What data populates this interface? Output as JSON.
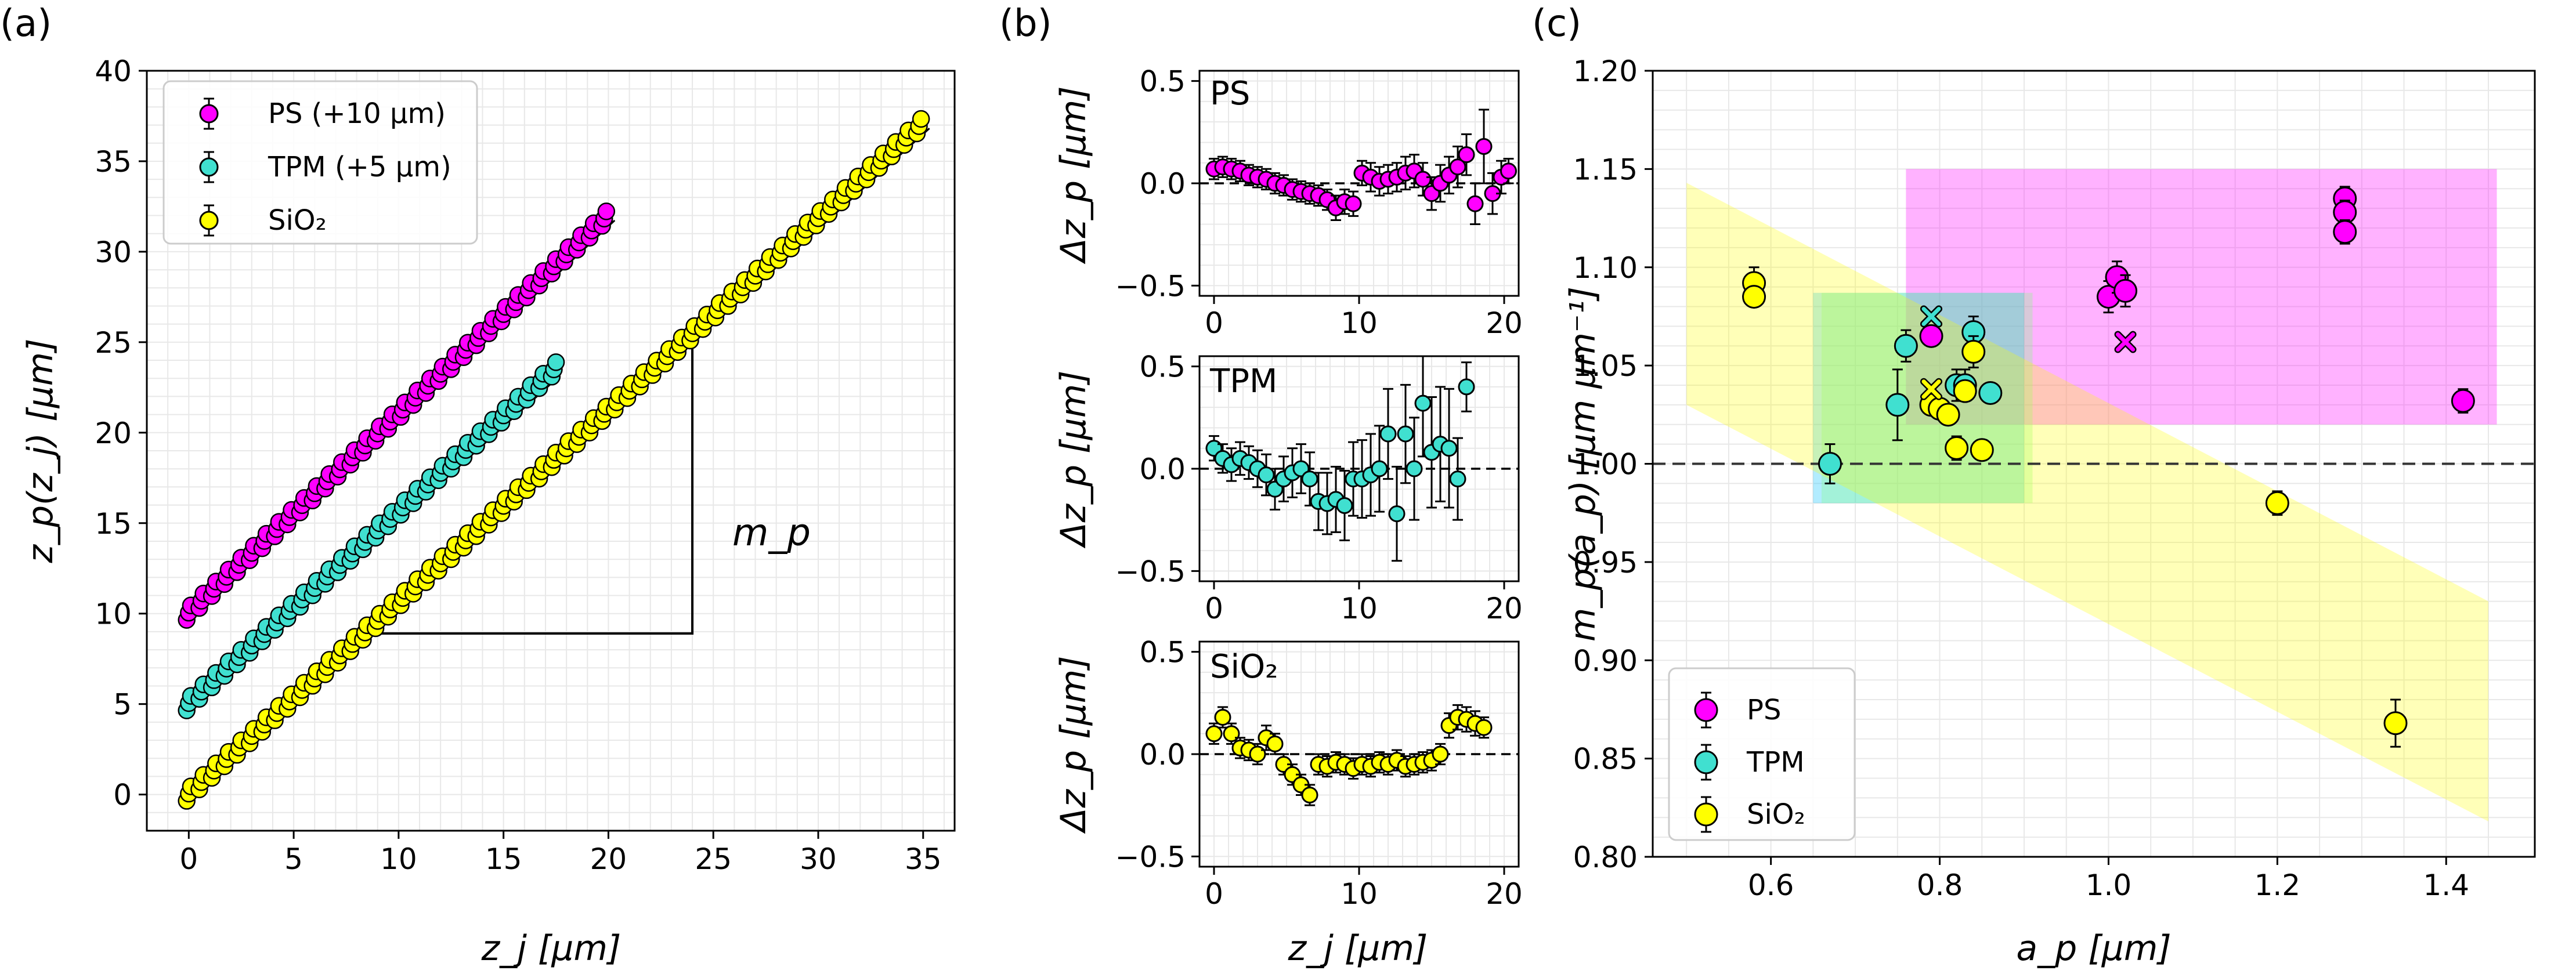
{
  "chart_data": [
    {
      "panel": "(a)",
      "type": "scatter",
      "xlabel": "z_j [µm]",
      "ylabel": "z_p(z_j) [µm]",
      "xlim": [
        -2,
        36.5
      ],
      "ylim": [
        -2,
        40
      ],
      "xticks": [
        "0",
        "5",
        "10",
        "15",
        "20",
        "25",
        "30",
        "35"
      ],
      "yticks": [
        "0",
        "5",
        "10",
        "15",
        "20",
        "25",
        "30",
        "35",
        "40"
      ],
      "legend": {
        "position": "top-left",
        "entries": [
          "PS (+10 µm)",
          "TPM (+5 µm)",
          "SiO₂"
        ]
      },
      "annotation": "m_p",
      "series": [
        {
          "name": "PS (+10 µm)",
          "color": "#ff00ff",
          "x_start": 0,
          "x_end": 20.3,
          "step": 0.6,
          "offset": 10,
          "slope": 1.1,
          "y_range": [
            10,
            32.3
          ]
        },
        {
          "name": "TPM (+5 µm)",
          "color": "#40e0d0",
          "x_start": 0,
          "x_end": 17.4,
          "step": 0.6,
          "offset": 5,
          "slope": 1.06,
          "y_range": [
            5,
            23.9
          ]
        },
        {
          "name": "SiO₂",
          "color": "#ffff00",
          "x_start": 0,
          "x_end": 35.3,
          "step": 0.6,
          "offset": 0,
          "slope": 1.06,
          "y_range": [
            0,
            37.5
          ]
        }
      ]
    },
    {
      "panel": "(b)",
      "type": "scatter",
      "subplots": [
        {
          "label": "PS",
          "color": "#ff00ff",
          "ylabel": "Δz_p [µm]",
          "xlim": [
            -1,
            21
          ],
          "ylim": [
            -0.55,
            0.55
          ],
          "yticks": [
            "0.5",
            "0.0",
            "−0.5"
          ],
          "xticks": [
            "0",
            "10",
            "20"
          ],
          "x": [
            0,
            0.6,
            1.2,
            1.8,
            2.4,
            3,
            3.6,
            4.2,
            4.8,
            5.4,
            6,
            6.6,
            7.2,
            7.8,
            8.4,
            9,
            9.6,
            10.2,
            10.8,
            11.4,
            12,
            12.6,
            13.2,
            13.8,
            14.4,
            15,
            15.6,
            16.2,
            16.8,
            17.4,
            18,
            18.6,
            19.2,
            19.8,
            20.3
          ],
          "y": [
            0.07,
            0.08,
            0.07,
            0.06,
            0.04,
            0.03,
            0.02,
            0.0,
            -0.01,
            -0.03,
            -0.04,
            -0.05,
            -0.06,
            -0.08,
            -0.12,
            -0.09,
            -0.1,
            0.05,
            0.03,
            0.01,
            0.02,
            0.03,
            0.05,
            0.06,
            0.02,
            -0.05,
            0.0,
            0.04,
            0.08,
            0.14,
            -0.1,
            0.18,
            -0.05,
            0.03,
            0.06
          ],
          "err": [
            0.05,
            0.05,
            0.05,
            0.05,
            0.05,
            0.05,
            0.05,
            0.05,
            0.05,
            0.05,
            0.05,
            0.05,
            0.05,
            0.05,
            0.06,
            0.06,
            0.06,
            0.06,
            0.07,
            0.07,
            0.07,
            0.07,
            0.08,
            0.08,
            0.08,
            0.08,
            0.09,
            0.09,
            0.1,
            0.1,
            0.1,
            0.18,
            0.1,
            0.08,
            0.06
          ]
        },
        {
          "label": "TPM",
          "color": "#40e0d0",
          "ylabel": "Δz_p [µm]",
          "xlim": [
            -1,
            21
          ],
          "ylim": [
            -0.55,
            0.55
          ],
          "yticks": [
            "0.5",
            "0.0",
            "−0.5"
          ],
          "xticks": [
            "0",
            "10",
            "20"
          ],
          "x": [
            0,
            0.6,
            1.2,
            1.8,
            2.4,
            3,
            3.6,
            4.2,
            4.8,
            5.4,
            6,
            6.6,
            7.2,
            7.8,
            8.4,
            9,
            9.6,
            10.2,
            10.8,
            11.4,
            12,
            12.6,
            13.2,
            13.8,
            14.4,
            15,
            15.6,
            16.2,
            16.8,
            17.4
          ],
          "y": [
            0.1,
            0.05,
            0.02,
            0.05,
            0.03,
            0.0,
            -0.03,
            -0.1,
            -0.05,
            -0.02,
            0.0,
            -0.05,
            -0.16,
            -0.17,
            -0.15,
            -0.18,
            -0.05,
            -0.05,
            -0.03,
            0.0,
            0.17,
            -0.22,
            0.17,
            0.0,
            0.32,
            0.08,
            0.12,
            0.1,
            -0.05,
            0.4
          ],
          "err": [
            0.06,
            0.07,
            0.08,
            0.08,
            0.08,
            0.09,
            0.1,
            0.1,
            0.11,
            0.12,
            0.12,
            0.13,
            0.14,
            0.15,
            0.16,
            0.17,
            0.18,
            0.19,
            0.2,
            0.21,
            0.22,
            0.23,
            0.24,
            0.25,
            0.26,
            0.27,
            0.28,
            0.29,
            0.2,
            0.12
          ]
        },
        {
          "label": "SiO₂",
          "color": "#ffff00",
          "ylabel": "Δz_p [µm]",
          "xlabel": "z_j [µm]",
          "xlim": [
            -1,
            21
          ],
          "ylim": [
            -0.55,
            0.55
          ],
          "yticks": [
            "0.5",
            "0.0",
            "−0.5"
          ],
          "xticks": [
            "0",
            "10",
            "20"
          ],
          "x": [
            0,
            0.6,
            1.2,
            1.8,
            2.4,
            3,
            3.6,
            4.2,
            4.8,
            5.4,
            6,
            6.6,
            7.2,
            7.8,
            8.4,
            9,
            9.6,
            10.2,
            10.8,
            11.4,
            12,
            12.6,
            13.2,
            13.8,
            14.4,
            15,
            15.6,
            16.2,
            16.8,
            17.4,
            18,
            18.6
          ],
          "y": [
            0.1,
            0.18,
            0.1,
            0.03,
            0.02,
            0.0,
            0.08,
            0.05,
            -0.05,
            -0.1,
            -0.15,
            -0.2,
            -0.05,
            -0.06,
            -0.04,
            -0.05,
            -0.07,
            -0.05,
            -0.06,
            -0.04,
            -0.05,
            -0.03,
            -0.06,
            -0.05,
            -0.04,
            -0.03,
            0.0,
            0.14,
            0.18,
            0.17,
            0.15,
            0.13
          ],
          "err": [
            0.05,
            0.05,
            0.05,
            0.05,
            0.05,
            0.05,
            0.06,
            0.05,
            0.05,
            0.05,
            0.05,
            0.05,
            0.05,
            0.05,
            0.05,
            0.05,
            0.05,
            0.05,
            0.05,
            0.05,
            0.05,
            0.05,
            0.05,
            0.05,
            0.05,
            0.05,
            0.05,
            0.06,
            0.06,
            0.06,
            0.06,
            0.05
          ]
        }
      ]
    },
    {
      "panel": "(c)",
      "type": "scatter",
      "xlabel": "a_p [µm]",
      "ylabel": "m_p(a_p) [µm µm⁻¹]",
      "xlim": [
        0.46,
        1.505
      ],
      "ylim": [
        0.8,
        1.2
      ],
      "xticks": [
        "0.6",
        "0.8",
        "1.0",
        "1.2",
        "1.4"
      ],
      "yticks": [
        "1.20",
        "1.15",
        "1.10",
        "1.05",
        "1.00",
        "0.95",
        "0.90",
        "0.85",
        "0.80"
      ],
      "reference_line": 1.0,
      "legend": {
        "position": "bottom-left",
        "entries": [
          "PS",
          "TPM",
          "SiO₂"
        ]
      },
      "series": [
        {
          "name": "PS",
          "color": "#ff00ff",
          "points": [
            [
              0.79,
              1.065
            ],
            [
              1.0,
              1.085
            ],
            [
              1.01,
              1.095
            ],
            [
              1.02,
              1.088
            ],
            [
              1.28,
              1.135
            ],
            [
              1.28,
              1.128
            ],
            [
              1.28,
              1.118
            ],
            [
              1.42,
              1.032
            ]
          ],
          "err": [
            0.005,
            0.008,
            0.008,
            0.008,
            0.006,
            0.006,
            0.006,
            0.006
          ],
          "crosses": [
            [
              0.79,
              1.075
            ],
            [
              1.02,
              1.062
            ]
          ]
        },
        {
          "name": "TPM",
          "color": "#40e0d0",
          "points": [
            [
              0.67,
              1.0
            ],
            [
              0.75,
              1.03
            ],
            [
              0.76,
              1.06
            ],
            [
              0.82,
              1.04
            ],
            [
              0.83,
              1.04
            ],
            [
              0.84,
              1.067
            ],
            [
              0.86,
              1.036
            ]
          ],
          "err": [
            0.01,
            0.018,
            0.008,
            0.008,
            0.008,
            0.008,
            0.005
          ],
          "crosses": [
            [
              0.79,
              1.075
            ]
          ]
        },
        {
          "name": "SiO₂",
          "color": "#ffff00",
          "points": [
            [
              0.58,
              1.092
            ],
            [
              0.58,
              1.085
            ],
            [
              0.79,
              1.03
            ],
            [
              0.8,
              1.028
            ],
            [
              0.81,
              1.025
            ],
            [
              0.82,
              1.008
            ],
            [
              0.83,
              1.037
            ],
            [
              0.84,
              1.057
            ],
            [
              0.85,
              1.007
            ],
            [
              1.2,
              0.98
            ],
            [
              1.34,
              0.868
            ]
          ],
          "err": [
            0.008,
            0.005,
            0.005,
            0.005,
            0.005,
            0.006,
            0.005,
            0.008,
            0.005,
            0.006,
            0.012
          ],
          "crosses": [
            [
              0.79,
              1.038
            ]
          ]
        }
      ],
      "bands": [
        {
          "color": "#ff00ff",
          "x": [
            0.76,
            1.46
          ],
          "y": [
            1.02,
            1.15
          ]
        },
        {
          "color": "#00c0ff",
          "x": [
            0.65,
            0.9
          ],
          "y": [
            0.98,
            1.087
          ]
        },
        {
          "color": "#80ff80",
          "x": [
            0.66,
            0.91
          ],
          "y": [
            0.98,
            1.087
          ]
        },
        {
          "color": "#ffff00",
          "polygon": [
            [
              0.5,
              1.143
            ],
            [
              1.45,
              0.93
            ],
            [
              1.45,
              0.818
            ],
            [
              0.5,
              1.03
            ]
          ]
        }
      ]
    }
  ]
}
